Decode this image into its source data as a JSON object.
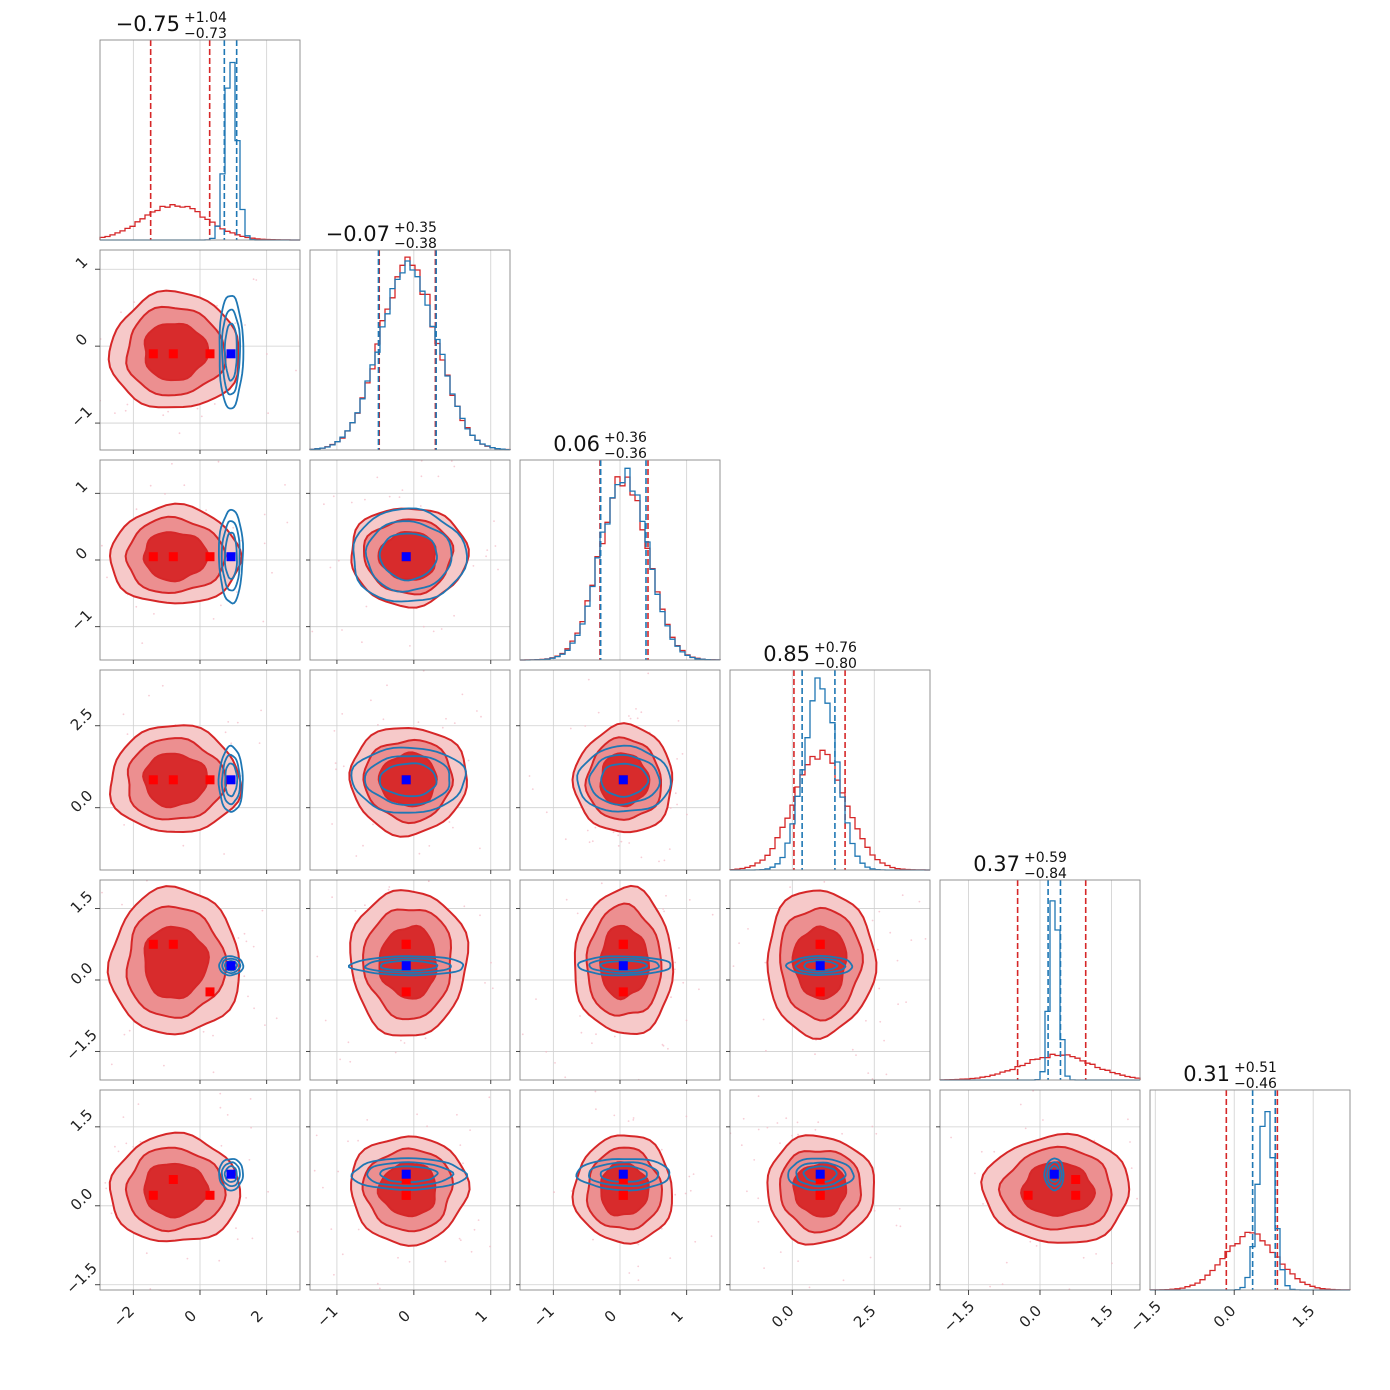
{
  "figure": {
    "type": "corner-plot",
    "n_params": 6
  },
  "colors": {
    "red_line": "#d62728",
    "red_fill_outer": "#f6c9c9",
    "red_fill_mid": "#ec8f90",
    "red_fill_inner": "#d82b2c",
    "blue_line": "#1f77b4",
    "red_marker": "#ff0000",
    "blue_marker": "#0000ff",
    "grid": "#cfcfcf"
  },
  "chart_data": {
    "type": "corner",
    "params": [
      {
        "median": -0.75,
        "plus": "+1.04",
        "minus": "−0.73",
        "median_label": "−0.75",
        "range": [
          -3.0,
          3.0
        ],
        "ticks": [
          -2,
          0,
          2
        ],
        "tick_labels": [
          "−2",
          "0",
          "2"
        ],
        "red": {
          "mu": -0.75,
          "sd": 0.95,
          "q": [
            -1.48,
            0.29
          ]
        },
        "blue": {
          "mu": 0.93,
          "sd": 0.18,
          "q": [
            0.73,
            1.1
          ]
        },
        "truth_red": [
          -1.4,
          -0.8,
          0.3
        ],
        "truth_blue": 0.93
      },
      {
        "median": -0.07,
        "plus": "+0.35",
        "minus": "−0.38",
        "median_label": "−0.07",
        "range": [
          -1.35,
          1.25
        ],
        "ticks": [
          -1,
          0,
          1
        ],
        "tick_labels": [
          "−1",
          "0",
          "1"
        ],
        "red": {
          "mu": -0.07,
          "sd": 0.37,
          "q": [
            -0.45,
            0.28
          ]
        },
        "blue": {
          "mu": -0.07,
          "sd": 0.37,
          "q": [
            -0.46,
            0.29
          ]
        },
        "truth_red": [
          -0.1,
          -0.1,
          -0.1
        ],
        "truth_blue": -0.1
      },
      {
        "median": 0.06,
        "plus": "+0.36",
        "minus": "−0.36",
        "median_label": "0.06",
        "range": [
          -1.5,
          1.5
        ],
        "ticks": [
          -1,
          0,
          1
        ],
        "tick_labels": [
          "−1",
          "0",
          "1"
        ],
        "red": {
          "mu": 0.06,
          "sd": 0.36,
          "q": [
            -0.3,
            0.42
          ]
        },
        "blue": {
          "mu": 0.06,
          "sd": 0.35,
          "q": [
            -0.29,
            0.39
          ]
        },
        "truth_red": [
          0.05,
          0.05,
          0.05
        ],
        "truth_blue": 0.05
      },
      {
        "median": 0.85,
        "plus": "+0.76",
        "minus": "−0.80",
        "median_label": "0.85",
        "range": [
          -1.9,
          4.2
        ],
        "ticks": [
          0.0,
          2.5
        ],
        "tick_labels": [
          "0.0",
          "2.5"
        ],
        "red": {
          "mu": 0.85,
          "sd": 0.8,
          "q": [
            0.05,
            1.61
          ]
        },
        "blue": {
          "mu": 0.85,
          "sd": 0.5,
          "q": [
            0.3,
            1.3
          ]
        },
        "truth_red": [
          0.85,
          0.85,
          0.85
        ],
        "truth_blue": 0.85
      },
      {
        "median": 0.37,
        "plus": "+0.59",
        "minus": "−0.84",
        "median_label": "0.37",
        "range": [
          -2.1,
          2.1
        ],
        "ticks": [
          -1.5,
          0.0,
          1.5
        ],
        "tick_labels": [
          "−1.5",
          "0.0",
          "1.5"
        ],
        "red": {
          "mu": 0.37,
          "sd": 0.75,
          "q": [
            -0.47,
            0.96
          ]
        },
        "blue": {
          "mu": 0.3,
          "sd": 0.1,
          "q": [
            0.17,
            0.43
          ]
        },
        "truth_red": [
          0.75,
          0.75,
          -0.25
        ],
        "truth_blue": 0.3
      },
      {
        "median": 0.31,
        "plus": "+0.51",
        "minus": "−0.46",
        "median_label": "0.31",
        "range": [
          -1.6,
          2.2
        ],
        "ticks": [
          -1.5,
          0.0,
          1.5
        ],
        "tick_labels": [
          "−1.5",
          "0.0",
          "1.5"
        ],
        "red": {
          "mu": 0.31,
          "sd": 0.5,
          "q": [
            -0.15,
            0.82
          ]
        },
        "blue": {
          "mu": 0.6,
          "sd": 0.15,
          "q": [
            0.35,
            0.78
          ]
        },
        "truth_red": [
          0.2,
          0.5,
          0.2
        ],
        "truth_blue": 0.6
      }
    ]
  }
}
